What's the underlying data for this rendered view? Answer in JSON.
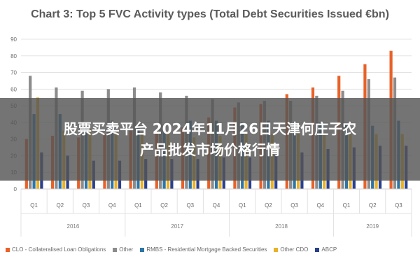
{
  "chart_data": {
    "type": "bar",
    "title": "Chart 3: Top 5 FVC Activity types (Total Debt Securities Issued €bn)",
    "ylim": [
      0,
      90
    ],
    "yticks": [
      0,
      10,
      20,
      30,
      40,
      50,
      60,
      70,
      80,
      90
    ],
    "grid": true,
    "legend_position": "bottom",
    "categories": [
      "Q1",
      "Q2",
      "Q3",
      "Q4",
      "Q1",
      "Q2",
      "Q3",
      "Q4",
      "Q1",
      "Q2",
      "Q3",
      "Q4",
      "Q1",
      "Q2",
      "Q3"
    ],
    "years": [
      {
        "label": "2016",
        "quarters": 4
      },
      {
        "label": "2017",
        "quarters": 4
      },
      {
        "label": "2018",
        "quarters": 4
      },
      {
        "label": "2019",
        "quarters": 3
      }
    ],
    "series": [
      {
        "name": "CLO - Collateralised Loan Obligations",
        "color": "#e8622a",
        "values": [
          30,
          32,
          31,
          33,
          35,
          36,
          37,
          43,
          49,
          51,
          57,
          61,
          68,
          75,
          83
        ]
      },
      {
        "name": "Other",
        "color": "#8c8c8c",
        "values": [
          68,
          61,
          59,
          60,
          61,
          58,
          56,
          54,
          52,
          53,
          53,
          56,
          59,
          66,
          67
        ]
      },
      {
        "name": "RMBS - Residential Mortgage Backed Securities",
        "color": "#2e75a6",
        "values": [
          45,
          45,
          40,
          41,
          39,
          39,
          41,
          41,
          40,
          41,
          40,
          40,
          39,
          38,
          41
        ]
      },
      {
        "name": "Other CDO",
        "color": "#e8b22a",
        "values": [
          55,
          35,
          36,
          33,
          33,
          33,
          31,
          32,
          33,
          33,
          33,
          33,
          33,
          33,
          33
        ]
      },
      {
        "name": "ABCP",
        "color": "#2a3f8c",
        "values": [
          22,
          20,
          17,
          17,
          18,
          18,
          18,
          19,
          19,
          20,
          22,
          24,
          25,
          26,
          26
        ]
      }
    ]
  },
  "overlay": {
    "line1": "股票买卖平台 2024年11月26日天津何庄子农",
    "line2": "产品批发市场价格行情"
  }
}
